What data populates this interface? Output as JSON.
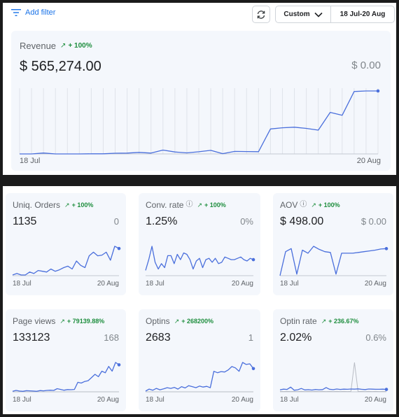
{
  "toolbar": {
    "add_filter_label": "Add filter",
    "range_mode": "Custom",
    "date_range": "18 Jul-20 Aug"
  },
  "colors": {
    "accent": "#1a73e8",
    "line": "#4a6fdc",
    "positive": "#1e8e3e",
    "card_bg": "#f4f7fc"
  },
  "revenue": {
    "title": "Revenue",
    "trend": "+ 100%",
    "value": "$ 565,274.00",
    "previous_value": "$ 0.00",
    "axis_start": "18 Jul",
    "axis_end": "20 Aug",
    "series": [
      0,
      0,
      1500,
      0,
      0,
      0,
      250,
      200,
      1200,
      1400,
      2600,
      1400,
      6500,
      3300,
      1800,
      3600,
      6000,
      500,
      4200,
      4000,
      3800,
      42000,
      44000,
      45000,
      43000,
      40000,
      70000,
      65000,
      105000,
      106000,
      106000
    ]
  },
  "metrics": [
    {
      "id": "uniq-orders",
      "title": "Uniq. Orders",
      "has_info": false,
      "trend": "+ 100%",
      "value": "1135",
      "previous_value": "0",
      "axis_start": "18 Jul",
      "axis_end": "20 Aug",
      "series": [
        1,
        3,
        1,
        1,
        5,
        3,
        7,
        6,
        5,
        9,
        6,
        8,
        11,
        13,
        9,
        20,
        14,
        11,
        27,
        32,
        27,
        28,
        32,
        21,
        40,
        37
      ],
      "baseline": []
    },
    {
      "id": "conv-rate",
      "title": "Conv. rate",
      "has_info": true,
      "trend": "+ 100%",
      "value": "1.25%",
      "previous_value": "0%",
      "axis_start": "18 Jul",
      "axis_end": "20 Aug",
      "series": [
        0.4,
        1.2,
        2.2,
        1.0,
        0.5,
        0.9,
        0.6,
        1.5,
        1.5,
        0.9,
        1.6,
        1.2,
        1.7,
        1.6,
        1.2,
        0.5,
        1.1,
        1.3,
        0.6,
        1.2,
        1.3,
        1.0,
        1.3,
        0.9,
        1.0,
        1.4,
        1.3,
        1.2,
        1.2,
        1.3,
        1.4,
        1.2,
        1.1,
        1.3,
        1.2
      ],
      "baseline": []
    },
    {
      "id": "aov",
      "title": "AOV",
      "has_info": true,
      "trend": "+ 100%",
      "value": "$ 498.00",
      "previous_value": "$ 0.00",
      "axis_start": "18 Jul",
      "axis_end": "20 Aug",
      "series": [
        0,
        310,
        350,
        20,
        330,
        290,
        380,
        340,
        310,
        300,
        20,
        290,
        290,
        290,
        300,
        310,
        320,
        330,
        345,
        350
      ],
      "baseline": []
    },
    {
      "id": "page-views",
      "title": "Page views",
      "has_info": false,
      "trend": "+ 79139.88%",
      "value": "133123",
      "previous_value": "168",
      "axis_start": "18 Jul",
      "axis_end": "20 Aug",
      "series": [
        300,
        900,
        500,
        300,
        700,
        600,
        500,
        300,
        800,
        600,
        900,
        1000,
        900,
        2000,
        1500,
        1000,
        1400,
        1300,
        1500,
        6000,
        5500,
        6500,
        7000,
        9000,
        11000,
        9500,
        13000,
        12000,
        16000,
        13000,
        18500,
        17000
      ],
      "baseline": [
        10,
        15,
        10,
        20,
        12,
        10,
        15,
        12,
        18,
        10,
        12,
        15,
        10,
        12,
        14,
        10,
        12,
        15,
        10,
        12,
        14,
        12,
        15,
        10,
        12,
        14,
        12,
        10,
        12,
        14,
        12,
        10
      ]
    },
    {
      "id": "optins",
      "title": "Optins",
      "has_info": false,
      "trend": "+ 268200%",
      "value": "2683",
      "previous_value": "1",
      "axis_start": "18 Jul",
      "axis_end": "20 Aug",
      "series": [
        5,
        20,
        12,
        25,
        15,
        22,
        30,
        25,
        32,
        20,
        38,
        28,
        45,
        38,
        30,
        42,
        35,
        40,
        30,
        150,
        140,
        148,
        145,
        160,
        185,
        175,
        150,
        215,
        200,
        205,
        170
      ],
      "baseline": [
        0,
        0,
        0,
        0,
        0,
        0,
        0,
        0,
        0,
        0,
        0,
        0,
        0,
        0,
        0,
        0,
        0,
        0,
        0,
        0,
        0,
        0,
        0,
        0,
        0,
        0,
        0,
        0,
        0,
        0,
        0
      ]
    },
    {
      "id": "optin-rate",
      "title": "Optin rate",
      "has_info": false,
      "trend": "+ 236.67%",
      "value": "2.02%",
      "previous_value": "0.6%",
      "axis_start": "18 Jul",
      "axis_end": "20 Aug",
      "series": [
        1.5,
        2.0,
        1.8,
        3.5,
        1.2,
        1.5,
        2.5,
        1.4,
        1.6,
        1.3,
        1.8,
        1.5,
        1.7,
        3.2,
        1.9,
        1.6,
        2.1,
        1.8,
        2.0,
        1.9,
        2.1,
        2.0,
        2.2,
        1.9,
        1.7,
        2.1,
        2.0,
        1.9,
        1.9,
        2.0,
        1.8
      ],
      "baseline": [
        0.3,
        0.2,
        0.3,
        0.2,
        0.3,
        0.2,
        0.3,
        0.2,
        0.3,
        0.2,
        0.3,
        0.2,
        0.3,
        0.2,
        0.3,
        0.2,
        0.3,
        0.2,
        0.3,
        0.2,
        0.3,
        22,
        0.2,
        0.3,
        0.2,
        0.3,
        0.2,
        0.3,
        0.2,
        0.3,
        0.2
      ]
    }
  ]
}
